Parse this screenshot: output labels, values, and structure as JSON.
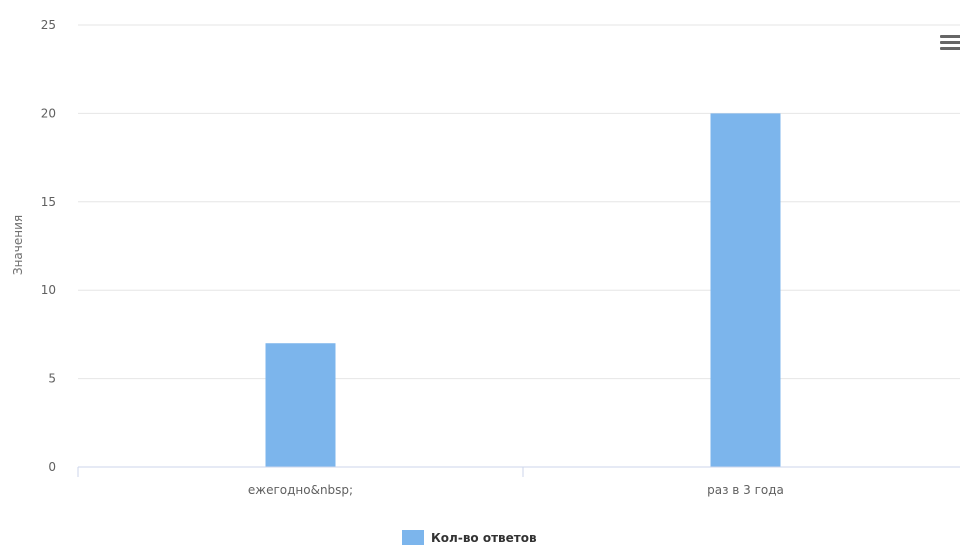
{
  "chart_data": {
    "type": "bar",
    "categories": [
      "ежегодно&nbsp;",
      "раз в 3 года"
    ],
    "series": [
      {
        "name": "Кол-во ответов",
        "values": [
          7,
          20
        ],
        "color": "#7cb5ec"
      }
    ],
    "ylabel": "Значения",
    "ylim": [
      0,
      25
    ],
    "yticks": [
      0,
      5,
      10,
      15,
      20,
      25
    ],
    "grid": true,
    "legend": "bottom-center"
  },
  "colors": {
    "grid": "#e6e6e6",
    "axis": "#ccd6eb",
    "menu_icon": "#666666"
  },
  "toolbar": {
    "menu_icon": "hamburger-menu-icon"
  }
}
